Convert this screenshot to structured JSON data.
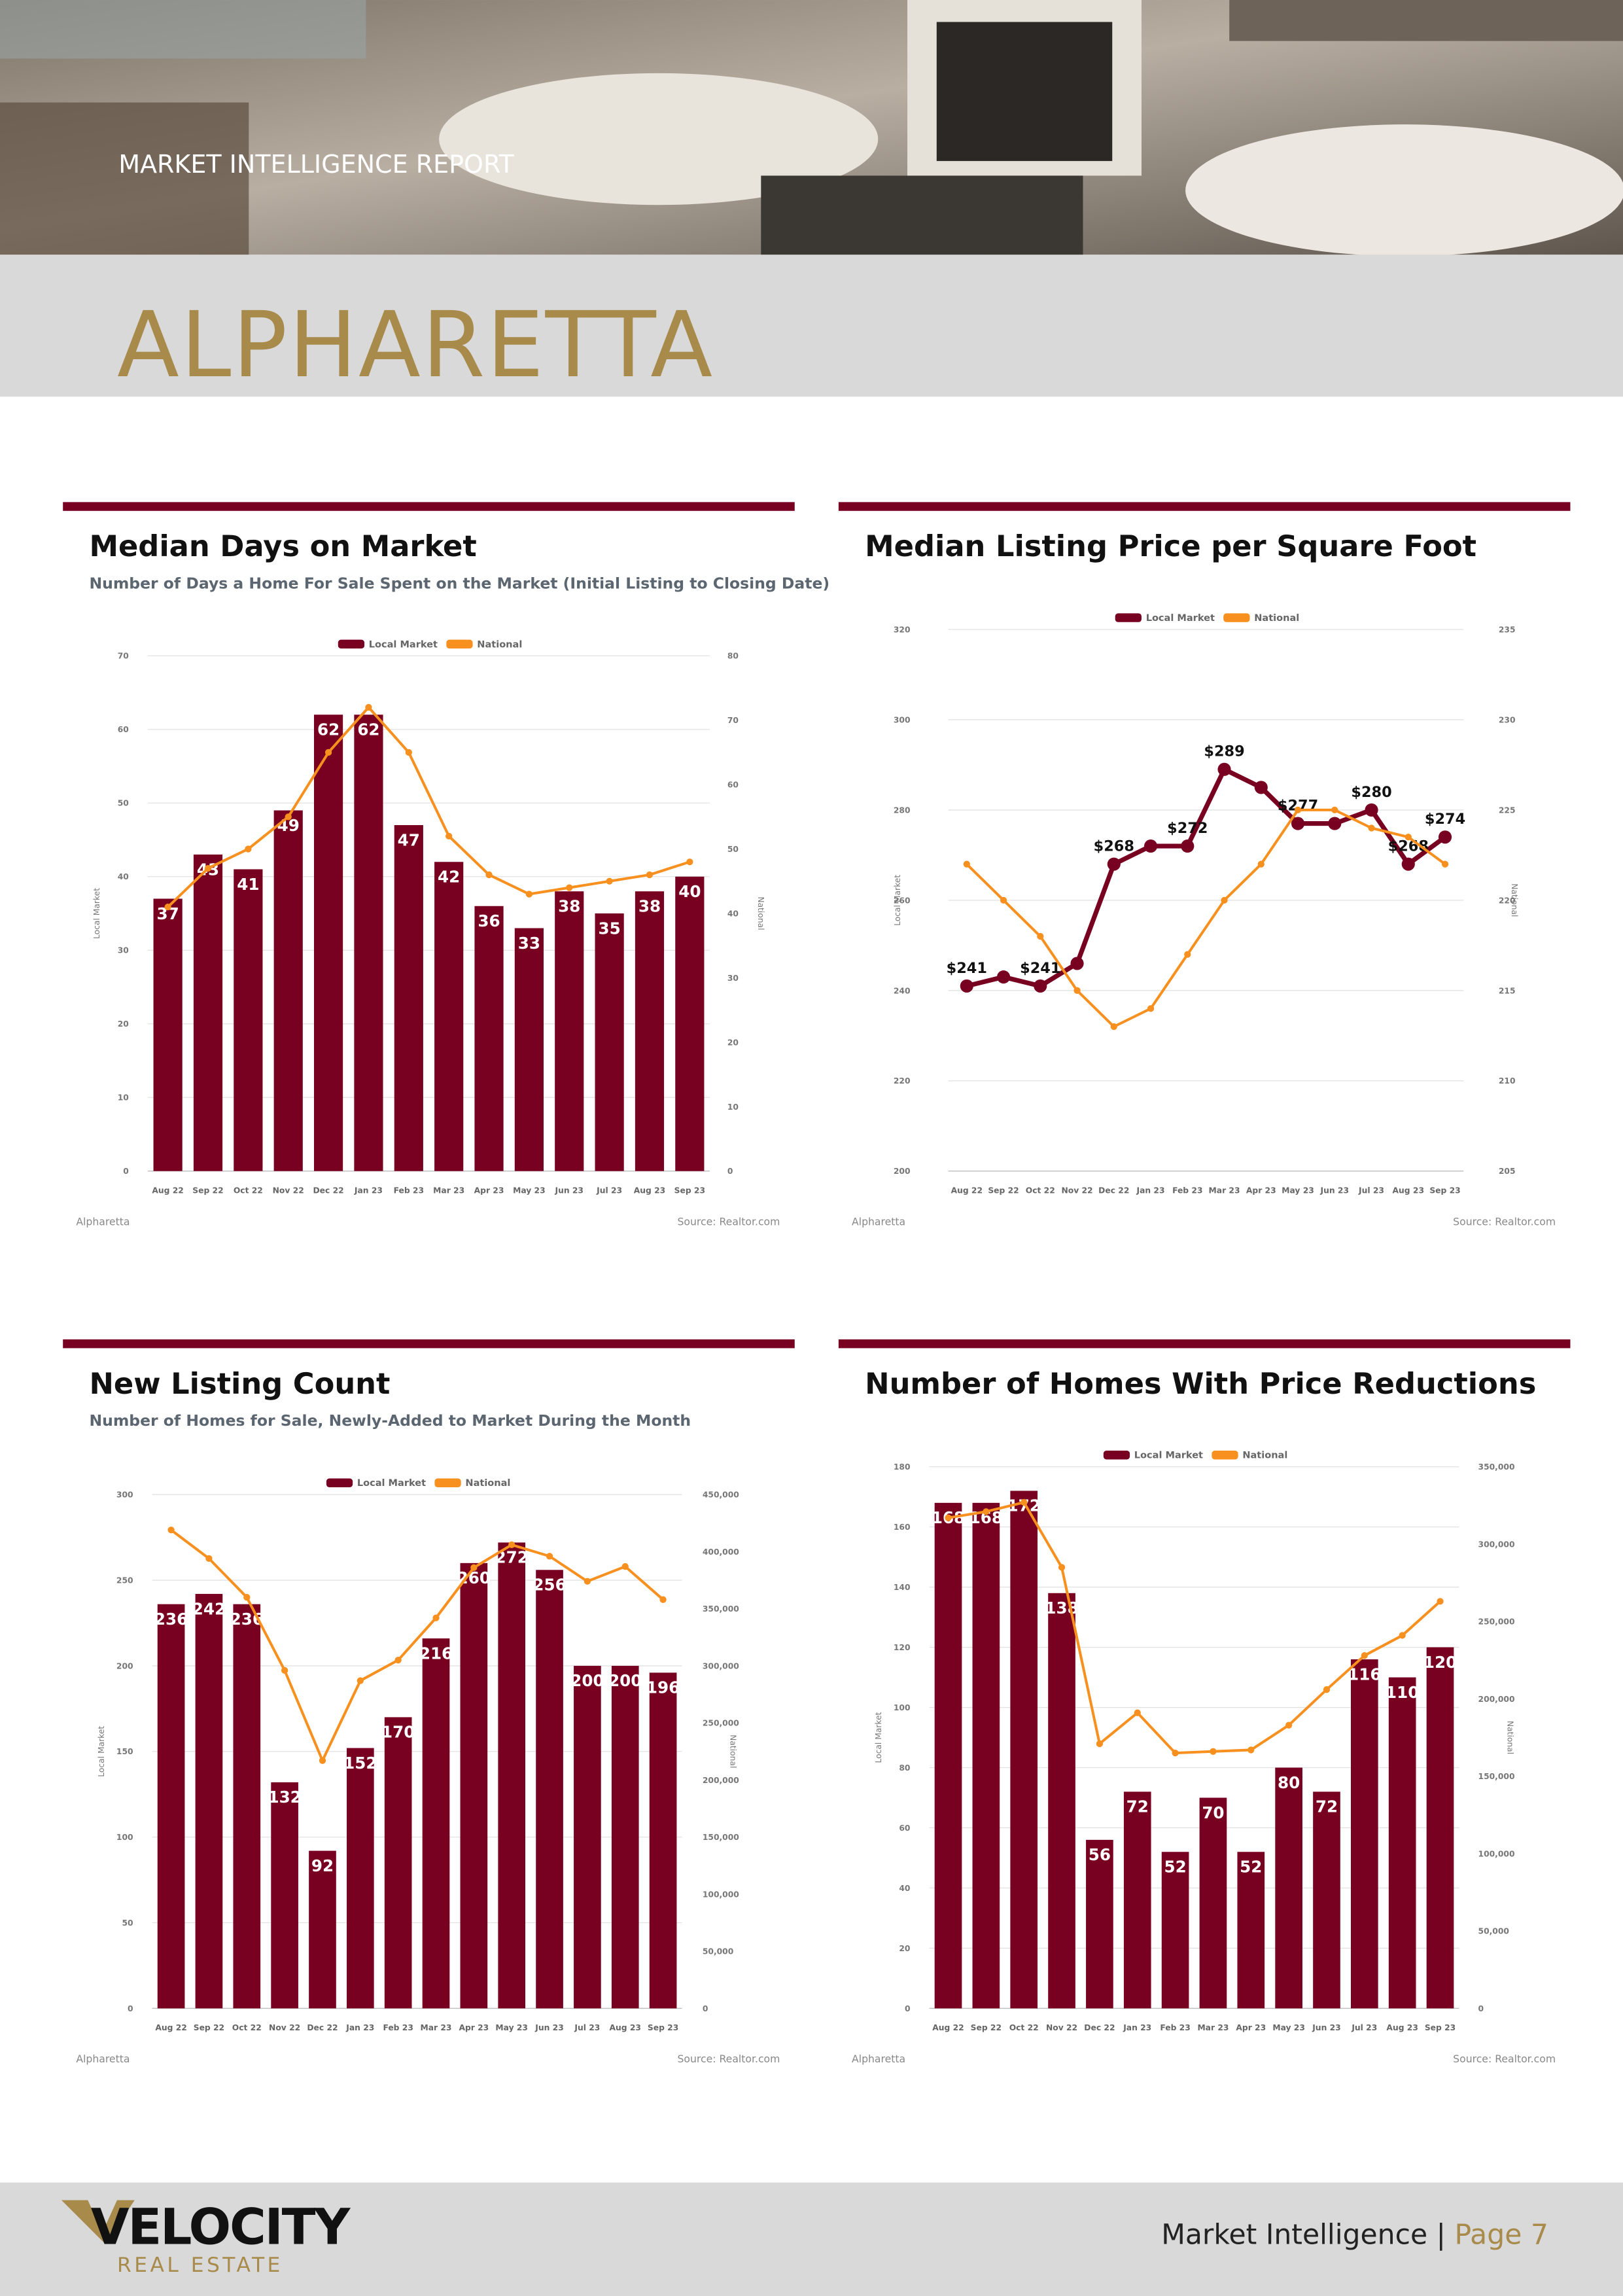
{
  "header": {
    "label": "MARKET INTELLIGENCE REPORT",
    "city": "ALPHARETTA"
  },
  "footer": {
    "logo": "VELOCITY",
    "logo_sub": "REAL ESTATE",
    "section": "Market Intelligence |",
    "page": "Page 7"
  },
  "chart_data": [
    {
      "type": "bar",
      "title": "Median Days on Market",
      "subtitle": "Number of Days a Home For Sale Spent on the Market (Initial Listing to Closing Date)",
      "categories": [
        "Aug 22",
        "Sep 22",
        "Oct 22",
        "Nov 22",
        "Dec 22",
        "Jan 23",
        "Feb 23",
        "Mar 23",
        "Apr 23",
        "May 23",
        "Jun 23",
        "Jul 23",
        "Aug 23",
        "Sep 23"
      ],
      "series": [
        {
          "name": "Local Market",
          "color": "#780020",
          "type": "bar",
          "axis": "y",
          "values": [
            37,
            43,
            41,
            49,
            62,
            62,
            47,
            42,
            36,
            33,
            38,
            35,
            38,
            40
          ]
        },
        {
          "name": "National",
          "color": "#f7901e",
          "type": "line",
          "axis": "y2",
          "values": [
            41,
            47,
            50,
            55,
            65,
            72,
            65,
            52,
            46,
            43,
            44,
            45,
            46,
            48
          ]
        }
      ],
      "ylabel": "Local Market",
      "y2label": "National",
      "ylim": [
        0,
        70
      ],
      "yticks": [
        0,
        10,
        20,
        30,
        40,
        50,
        60,
        70
      ],
      "y2lim": [
        0,
        80
      ],
      "y2ticks": [
        0,
        10,
        20,
        30,
        40,
        50,
        60,
        70,
        80
      ],
      "grid": true,
      "legend": "top",
      "notes": [
        "Alpharetta",
        "Source: Realtor.com"
      ]
    },
    {
      "type": "line",
      "title": "Median Listing Price per Square Foot",
      "categories": [
        "Aug 22",
        "Sep 22",
        "Oct 22",
        "Nov 22",
        "Dec 22",
        "Jan 23",
        "Feb 23",
        "Mar 23",
        "Apr 23",
        "May 23",
        "Jun 23",
        "Jul 23",
        "Aug 23",
        "Sep 23"
      ],
      "series": [
        {
          "name": "Local Market",
          "color": "#780020",
          "type": "line",
          "axis": "y",
          "values": [
            241,
            243,
            241,
            246,
            268,
            272,
            272,
            289,
            285,
            277,
            277,
            280,
            268,
            274
          ],
          "value_labels": [
            "$241",
            null,
            "$241",
            null,
            "$268",
            null,
            "$272",
            "$289",
            null,
            "$277",
            null,
            "$280",
            "$268",
            "$274"
          ]
        },
        {
          "name": "National",
          "color": "#f7901e",
          "type": "line",
          "axis": "y2",
          "values": [
            222,
            220,
            218,
            215,
            213,
            214,
            217,
            220,
            222,
            225,
            225,
            224,
            223.5,
            222
          ]
        }
      ],
      "ylabel": "Local Market",
      "y2label": "National",
      "ylim": [
        200,
        320
      ],
      "yticks": [
        200,
        220,
        240,
        260,
        280,
        300,
        320
      ],
      "y2lim": [
        205,
        235
      ],
      "y2ticks": [
        205,
        210,
        215,
        220,
        225,
        230,
        235
      ],
      "grid": true,
      "legend": "top",
      "notes": [
        "Alpharetta",
        "Source: Realtor.com"
      ]
    },
    {
      "type": "bar",
      "title": "New Listing Count",
      "subtitle": "Number of Homes for Sale, Newly-Added to Market During the Month",
      "categories": [
        "Aug 22",
        "Sep 22",
        "Oct 22",
        "Nov 22",
        "Dec 22",
        "Jan 23",
        "Feb 23",
        "Mar 23",
        "Apr 23",
        "May 23",
        "Jun 23",
        "Jul 23",
        "Aug 23",
        "Sep 23"
      ],
      "series": [
        {
          "name": "Local Market",
          "color": "#780020",
          "type": "bar",
          "axis": "y",
          "values": [
            236,
            242,
            236,
            132,
            92,
            152,
            170,
            216,
            260,
            272,
            256,
            200,
            200,
            196
          ]
        },
        {
          "name": "National",
          "color": "#f7901e",
          "type": "line",
          "axis": "y2",
          "values": [
            419000,
            394000,
            360000,
            296000,
            217000,
            287000,
            305000,
            342000,
            386000,
            406000,
            396000,
            374000,
            387000,
            358000
          ]
        }
      ],
      "ylabel": "Local Market",
      "y2label": "National",
      "ylim": [
        0,
        300
      ],
      "yticks": [
        0,
        50,
        100,
        150,
        200,
        250,
        300
      ],
      "y2lim": [
        0,
        450000
      ],
      "y2ticks": [
        0,
        {
          "value": 50000,
          "label": "50,000"
        },
        {
          "value": 100000,
          "label": "100,000"
        },
        {
          "value": 150000,
          "label": "150,000"
        },
        {
          "value": 200000,
          "label": "200,000"
        },
        {
          "value": 250000,
          "label": "250,000"
        },
        {
          "value": 300000,
          "label": "300,000"
        },
        {
          "value": 350000,
          "label": "350,000"
        },
        {
          "value": 400000,
          "label": "400,000"
        },
        {
          "value": 450000,
          "label": "450,000"
        }
      ],
      "grid": true,
      "legend": "top",
      "notes": [
        "Alpharetta",
        "Source: Realtor.com"
      ]
    },
    {
      "type": "bar",
      "title": "Number of Homes With Price Reductions",
      "categories": [
        "Aug 22",
        "Sep 22",
        "Oct 22",
        "Nov 22",
        "Dec 22",
        "Jan 23",
        "Feb 23",
        "Mar 23",
        "Apr 23",
        "May 23",
        "Jun 23",
        "Jul 23",
        "Aug 23",
        "Sep 23"
      ],
      "series": [
        {
          "name": "Local Market",
          "color": "#780020",
          "type": "bar",
          "axis": "y",
          "values": [
            168,
            168,
            172,
            138,
            56,
            72,
            52,
            70,
            52,
            80,
            72,
            116,
            110,
            120
          ]
        },
        {
          "name": "National",
          "color": "#f7901e",
          "type": "line",
          "axis": "y2",
          "values": [
            317000,
            321000,
            327000,
            285000,
            171000,
            191000,
            165000,
            166000,
            167000,
            183000,
            206000,
            228000,
            241000,
            263000
          ]
        }
      ],
      "ylabel": "Local Market",
      "y2label": "National",
      "ylim": [
        0,
        180
      ],
      "yticks": [
        0,
        20,
        40,
        60,
        80,
        100,
        120,
        140,
        160,
        180
      ],
      "y2lim": [
        0,
        350000
      ],
      "y2ticks": [
        0,
        {
          "value": 50000,
          "label": "50,000"
        },
        {
          "value": 100000,
          "label": "100,000"
        },
        {
          "value": 150000,
          "label": "150,000"
        },
        {
          "value": 200000,
          "label": "200,000"
        },
        {
          "value": 250000,
          "label": "250,000"
        },
        {
          "value": 300000,
          "label": "300,000"
        },
        {
          "value": 350000,
          "label": "350,000"
        }
      ],
      "grid": true,
      "legend": "top",
      "notes": [
        "Alpharetta",
        "Source: Realtor.com"
      ]
    }
  ]
}
